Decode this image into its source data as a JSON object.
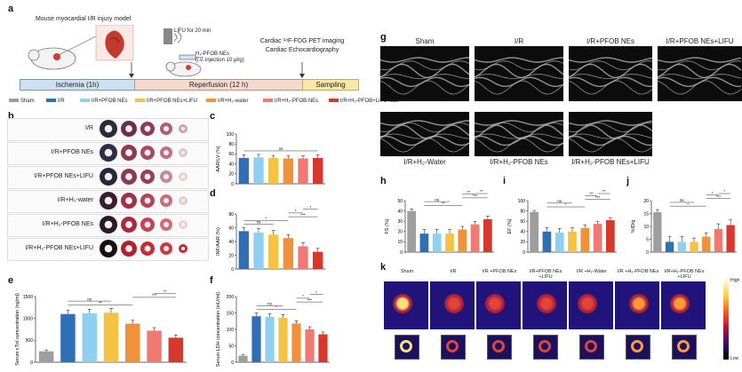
{
  "panel_letters": {
    "a": "a",
    "b": "b",
    "c": "c",
    "d": "d",
    "e": "e",
    "f": "f",
    "g": "g",
    "h": "h",
    "i": "i",
    "j": "j",
    "k": "k"
  },
  "panel_a": {
    "model_title": "Mouse myocardial I/R injury model",
    "lifu": "LIFU for 20 min",
    "nes_line1": "H₂-PFOB NEs",
    "nes_line2": "(i.v. injection 10 μl/g)",
    "imaging_line1": "Cardiac ¹⁸F-FDG PET imaging",
    "imaging_line2": "Cardiac Echocardiography",
    "phase_ischemia": "Ischemia (1h)",
    "phase_reperfusion": "Reperfusion (12 h)",
    "phase_sampling": "Sampling"
  },
  "legend": [
    {
      "label": "Sham",
      "color": "#9e9e9e"
    },
    {
      "label": "I/R",
      "color": "#2e6fb5"
    },
    {
      "label": "I/R+PFOB NEs",
      "color": "#8fd0f0"
    },
    {
      "label": "I/R+PFOB NEs+LIFU",
      "color": "#f6c244"
    },
    {
      "label": "I/R+H₂-water",
      "color": "#f0923a"
    },
    {
      "label": "I/R+H₂-PFOB NEs",
      "color": "#f07a72"
    },
    {
      "label": "I/R+H₂-PFOB+LIFU NEs",
      "color": "#d8372b"
    }
  ],
  "slice_rows": [
    "I/R",
    "I/R+PFOB NEs",
    "I/R+PFOB NEs+LIFU",
    "I/R+H₂-water",
    "I/R+H₂-PFOB NEs",
    "I/R+H₂-PFOB NEs+LIFU"
  ],
  "echo_labels": [
    "Sham",
    "I/R",
    "I/R+PFOB NEs",
    "I/R+PFOB NEs+LIFU",
    "I/R+H₂-Water",
    "I/R+H₂-PFOB NEs",
    "I/R+H₂-PFOB NEs+LIFU"
  ],
  "pet_labels": [
    "Sham",
    "I/R",
    "I/R +PFOB NEs",
    "I/R+PFOB NEs +LIFU",
    "I/R +H₂-Water",
    "I/R +H₂-PFOB NEs",
    "I/R+H₂-PFOB NEs +LIFU"
  ],
  "pet_scale": {
    "high": "High",
    "low": "Low"
  },
  "chart_data": [
    {
      "id": "c",
      "type": "bar",
      "ylabel": "AAR/LV (%)",
      "ylim": [
        0,
        100
      ],
      "yticks": [
        "0",
        "20",
        "40",
        "60",
        "80",
        "100"
      ],
      "values": [
        52,
        53,
        52,
        51,
        51,
        52
      ],
      "errors": [
        6,
        6,
        5,
        5,
        5,
        6
      ],
      "colors": [
        "#2e6fb5",
        "#8fd0f0",
        "#f6c244",
        "#f0923a",
        "#f07a72",
        "#d8372b"
      ],
      "sig": [
        {
          "from": 0,
          "to": 5,
          "text": "ns"
        }
      ]
    },
    {
      "id": "d",
      "type": "bar",
      "ylabel": "INF/AAR (%)",
      "ylim": [
        0,
        80
      ],
      "yticks": [
        "0",
        "20",
        "40",
        "60",
        "80"
      ],
      "values": [
        55,
        53,
        50,
        45,
        33,
        25
      ],
      "errors": [
        5,
        6,
        6,
        5,
        5,
        5
      ],
      "colors": [
        "#2e6fb5",
        "#8fd0f0",
        "#f6c244",
        "#f0923a",
        "#f07a72",
        "#d8372b"
      ],
      "sig": [
        {
          "from": 0,
          "to": 2,
          "text": "ns"
        },
        {
          "from": 0,
          "to": 3,
          "text": "*"
        },
        {
          "from": 3,
          "to": 5,
          "text": "***"
        },
        {
          "from": 3,
          "to": 4,
          "text": "*"
        },
        {
          "from": 4,
          "to": 5,
          "text": "*"
        }
      ]
    },
    {
      "id": "e",
      "type": "bar",
      "ylabel": "Serum cTnI concentration (ng/ml)",
      "ylim": [
        0,
        1500
      ],
      "yticks": [
        "0",
        "500",
        "1000",
        "1500"
      ],
      "values": [
        250,
        1100,
        1120,
        1130,
        880,
        720,
        560
      ],
      "errors": [
        30,
        90,
        90,
        100,
        80,
        70,
        60
      ],
      "colors": [
        "#9e9e9e",
        "#2e6fb5",
        "#8fd0f0",
        "#f6c244",
        "#f0923a",
        "#f07a72",
        "#d8372b"
      ],
      "sig": [
        {
          "from": 1,
          "to": 4,
          "text": "**"
        },
        {
          "from": 1,
          "to": 3,
          "text": "ns"
        },
        {
          "from": 4,
          "to": 6,
          "text": "***"
        },
        {
          "from": 5,
          "to": 6,
          "text": "**"
        }
      ]
    },
    {
      "id": "f",
      "type": "bar",
      "ylabel": "Serum LDH concentration (mU/ml)",
      "ylim": [
        0,
        200
      ],
      "yticks": [
        "0",
        "50",
        "100",
        "150",
        "200"
      ],
      "values": [
        20,
        140,
        138,
        135,
        118,
        100,
        85
      ],
      "errors": [
        4,
        10,
        10,
        10,
        8,
        8,
        7
      ],
      "colors": [
        "#9e9e9e",
        "#2e6fb5",
        "#8fd0f0",
        "#f6c244",
        "#f0923a",
        "#f07a72",
        "#d8372b"
      ],
      "sig": [
        {
          "from": 1,
          "to": 4,
          "text": "*"
        },
        {
          "from": 1,
          "to": 3,
          "text": "ns"
        },
        {
          "from": 4,
          "to": 6,
          "text": "***"
        },
        {
          "from": 4,
          "to": 5,
          "text": "*"
        },
        {
          "from": 5,
          "to": 6,
          "text": "*"
        }
      ]
    },
    {
      "id": "h",
      "type": "bar",
      "ylabel": "FS (%)",
      "ylim": [
        0,
        50
      ],
      "yticks": [
        "0",
        "10",
        "20",
        "30",
        "40",
        "50"
      ],
      "values": [
        40,
        18,
        18,
        18,
        22,
        27,
        32
      ],
      "errors": [
        2,
        4,
        4,
        4,
        3,
        3,
        3
      ],
      "colors": [
        "#9e9e9e",
        "#2e6fb5",
        "#8fd0f0",
        "#f6c244",
        "#f0923a",
        "#f07a72",
        "#d8372b"
      ],
      "sig": [
        {
          "from": 1,
          "to": 4,
          "text": "**"
        },
        {
          "from": 1,
          "to": 3,
          "text": "ns"
        },
        {
          "from": 4,
          "to": 6,
          "text": "***"
        },
        {
          "from": 4,
          "to": 5,
          "text": "**"
        },
        {
          "from": 5,
          "to": 6,
          "text": "**"
        }
      ]
    },
    {
      "id": "i",
      "type": "bar",
      "ylabel": "EF (%)",
      "ylim": [
        0,
        100
      ],
      "yticks": [
        "0",
        "20",
        "40",
        "60",
        "80",
        "100"
      ],
      "values": [
        78,
        40,
        38,
        40,
        47,
        55,
        62
      ],
      "errors": [
        3,
        8,
        8,
        7,
        6,
        5,
        5
      ],
      "colors": [
        "#9e9e9e",
        "#2e6fb5",
        "#8fd0f0",
        "#f6c244",
        "#f0923a",
        "#f07a72",
        "#d8372b"
      ],
      "sig": [
        {
          "from": 1,
          "to": 4,
          "text": "*"
        },
        {
          "from": 1,
          "to": 3,
          "text": "ns"
        },
        {
          "from": 4,
          "to": 6,
          "text": "***"
        },
        {
          "from": 4,
          "to": 5,
          "text": "**"
        },
        {
          "from": 5,
          "to": 6,
          "text": "**"
        }
      ]
    },
    {
      "id": "j",
      "type": "bar",
      "ylabel": "%ID/g",
      "ylim": [
        0,
        20
      ],
      "yticks": [
        "0",
        "5",
        "10",
        "15",
        "20"
      ],
      "values": [
        15.5,
        4,
        4,
        4,
        6,
        9,
        10.5
      ],
      "errors": [
        1,
        2,
        2,
        1.5,
        1.5,
        2,
        2
      ],
      "colors": [
        "#9e9e9e",
        "#2e6fb5",
        "#8fd0f0",
        "#f6c244",
        "#f0923a",
        "#f07a72",
        "#d8372b"
      ],
      "sig": [
        {
          "from": 1,
          "to": 4,
          "text": "*"
        },
        {
          "from": 1,
          "to": 3,
          "text": "ns"
        },
        {
          "from": 4,
          "to": 6,
          "text": "***"
        },
        {
          "from": 4,
          "to": 5,
          "text": "*"
        },
        {
          "from": 5,
          "to": 6,
          "text": "*"
        }
      ]
    }
  ]
}
